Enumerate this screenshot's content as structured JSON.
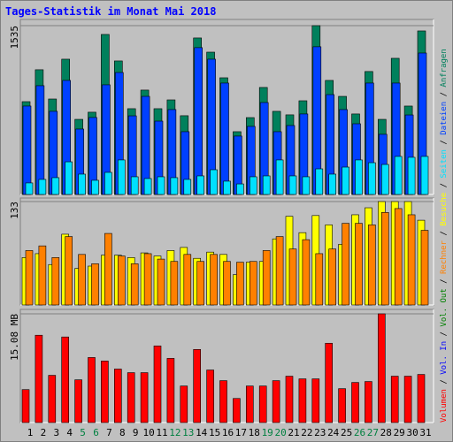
{
  "chart_data": [
    {
      "type": "bar",
      "title": "Tages-Statistik im Monat Mai 2018",
      "ylim": [
        0,
        1535
      ],
      "yticks": [
        1535
      ],
      "grid": true,
      "series": [
        {
          "name": "Anfragen",
          "color": "#00805c",
          "values": [
            844,
            1134,
            868,
            1230,
            683,
            748,
            1455,
            1214,
            780,
            949,
            780,
            860,
            716,
            1423,
            1294,
            1061,
            571,
            699,
            973,
            756,
            724,
            852,
            1535,
            1037,
            892,
            732,
            1118,
            683,
            1238,
            804,
            1487
          ]
        },
        {
          "name": "Dateien",
          "color": "#0040ff",
          "values": [
            804,
            989,
            756,
            1037,
            595,
            700,
            997,
            1109,
            715,
            892,
            667,
            772,
            571,
            1335,
            1230,
            1013,
            531,
            619,
            836,
            571,
            627,
            732,
            1343,
            908,
            772,
            643,
            1013,
            547,
            1013,
            723,
            1286
          ]
        },
        {
          "name": "Seiten",
          "color": "#00e0ff",
          "values": [
            105,
            137,
            153,
            297,
            185,
            129,
            201,
            314,
            161,
            145,
            161,
            153,
            137,
            169,
            225,
            121,
            96,
            161,
            169,
            314,
            169,
            161,
            233,
            185,
            249,
            314,
            289,
            273,
            346,
            338,
            346
          ]
        }
      ]
    },
    {
      "type": "bar",
      "ylim": [
        0,
        133
      ],
      "yticks": [
        133
      ],
      "grid": true,
      "series": [
        {
          "name": "Besuche",
          "color": "#ffff00",
          "values": [
            61,
            66,
            52,
            91,
            47,
            50,
            64,
            64,
            61,
            67,
            63,
            70,
            74,
            60,
            68,
            65,
            39,
            55,
            56,
            85,
            114,
            93,
            115,
            103,
            78,
            116,
            125,
            133,
            133,
            133,
            109
          ]
        },
        {
          "name": "Rechner",
          "color": "#ff8000",
          "values": [
            70,
            76,
            61,
            88,
            65,
            53,
            92,
            63,
            53,
            66,
            59,
            56,
            65,
            56,
            65,
            56,
            55,
            56,
            70,
            88,
            72,
            84,
            66,
            72,
            105,
            105,
            103,
            119,
            124,
            116,
            96
          ]
        }
      ]
    },
    {
      "type": "bar",
      "ylim": [
        0,
        15.08
      ],
      "yticks": [
        {
          "value": 15.08,
          "label": "15.08 MB"
        }
      ],
      "grid": true,
      "categories": [
        "1",
        "2",
        "3",
        "4",
        "5",
        "6",
        "7",
        "8",
        "9",
        "10",
        "11",
        "12",
        "13",
        "14",
        "15",
        "16",
        "17",
        "18",
        "19",
        "20",
        "21",
        "22",
        "23",
        "24",
        "25",
        "26",
        "27",
        "28",
        "29",
        "30",
        "31"
      ],
      "category_colors": [
        "#000000",
        "#000000",
        "#000000",
        "#000000",
        "#008040",
        "#008040",
        "#000000",
        "#000000",
        "#000000",
        "#000000",
        "#000000",
        "#008040",
        "#008040",
        "#000000",
        "#000000",
        "#000000",
        "#000000",
        "#000000",
        "#008040",
        "#008040",
        "#000000",
        "#000000",
        "#000000",
        "#000000",
        "#000000",
        "#008040",
        "#008040",
        "#000000",
        "#000000",
        "#000000",
        "#000000"
      ],
      "series": [
        {
          "name": "Volumen",
          "color": "#ff0000",
          "values": [
            4.57,
            12.11,
            6.55,
            11.87,
            5.93,
            9.02,
            8.53,
            7.42,
            6.92,
            6.92,
            10.63,
            8.9,
            5.07,
            10.14,
            7.29,
            5.81,
            3.34,
            5.07,
            5.07,
            5.81,
            6.43,
            6.06,
            6.06,
            11.0,
            4.7,
            5.56,
            5.69,
            15.08,
            6.43,
            6.43,
            6.67
          ]
        }
      ],
      "legend_extra": [
        {
          "name": "Vol. In",
          "color": "#0000ff"
        },
        {
          "name": "Vol. Out",
          "color": "#008000"
        }
      ]
    }
  ]
}
